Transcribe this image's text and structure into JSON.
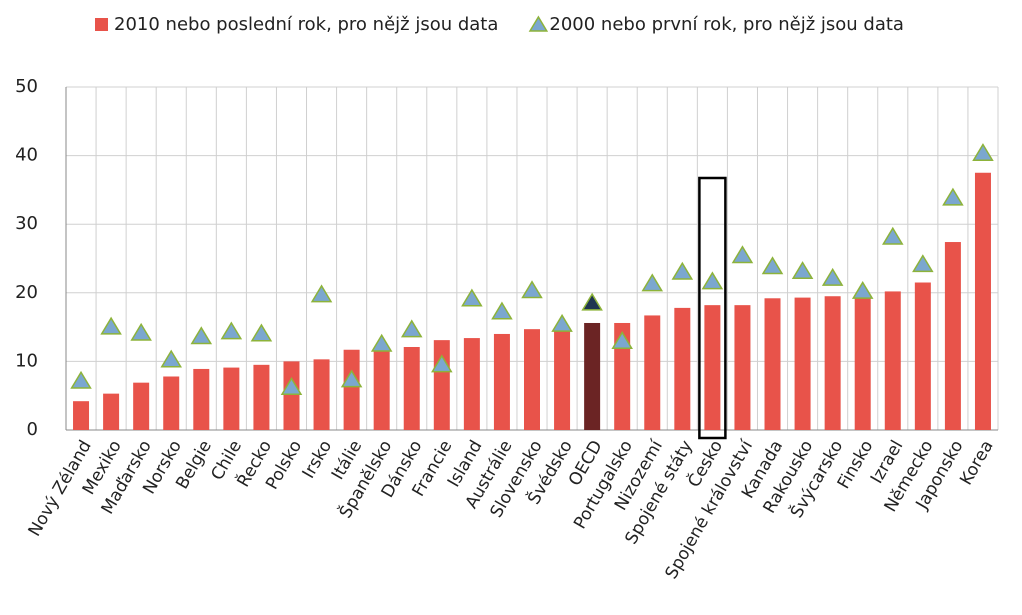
{
  "chart_data": {
    "type": "bar",
    "categories": [
      "Nový Zéland",
      "Mexiko",
      "Maďarsko",
      "Norsko",
      "Belgie",
      "Chile",
      "Řecko",
      "Polsko",
      "Irsko",
      "Itálie",
      "Španělsko",
      "Dánsko",
      "Francie",
      "Island",
      "Austrálie",
      "Slovensko",
      "Švédsko",
      "OECD",
      "Portugalsko",
      "Nizozemí",
      "Spojené státy",
      "Česko",
      "Spojené království",
      "Kanada",
      "Rakousko",
      "Švýcarsko",
      "Finsko",
      "Izrael",
      "Německo",
      "Japonsko",
      "Korea"
    ],
    "series": [
      {
        "name": "2010 nebo poslední rok, pro nějž jsou data",
        "mark": "bar",
        "color": "#e8534a",
        "highlight_color": "#6b2424",
        "highlight_category": "OECD",
        "values": [
          4.2,
          5.3,
          6.9,
          7.8,
          8.9,
          9.1,
          9.5,
          10.0,
          10.3,
          11.7,
          12.0,
          12.1,
          13.1,
          13.4,
          14.0,
          14.7,
          14.9,
          15.6,
          15.6,
          16.7,
          17.8,
          18.2,
          18.2,
          19.2,
          19.3,
          19.5,
          19.6,
          20.2,
          21.5,
          27.4,
          37.5
        ]
      },
      {
        "name": "2000 nebo první rok, pro nějž jsou data",
        "mark": "triangle",
        "color": "#7ba7cf",
        "stroke": "#8db33a",
        "highlight_color": "#1f3550",
        "highlight_category": "OECD",
        "values": [
          7.1,
          15.0,
          14.1,
          10.2,
          13.6,
          14.3,
          14.0,
          6.2,
          19.7,
          7.3,
          12.5,
          14.6,
          9.5,
          19.1,
          17.2,
          20.3,
          15.4,
          18.5,
          12.9,
          21.3,
          23.0,
          21.6,
          25.4,
          23.8,
          23.1,
          22.1,
          20.2,
          28.1,
          24.1,
          33.8,
          40.3
        ]
      }
    ],
    "outlined_category": "Česko",
    "ylim": [
      0,
      50
    ],
    "yticks": [
      0,
      10,
      20,
      30,
      40,
      50
    ],
    "grid": true
  }
}
